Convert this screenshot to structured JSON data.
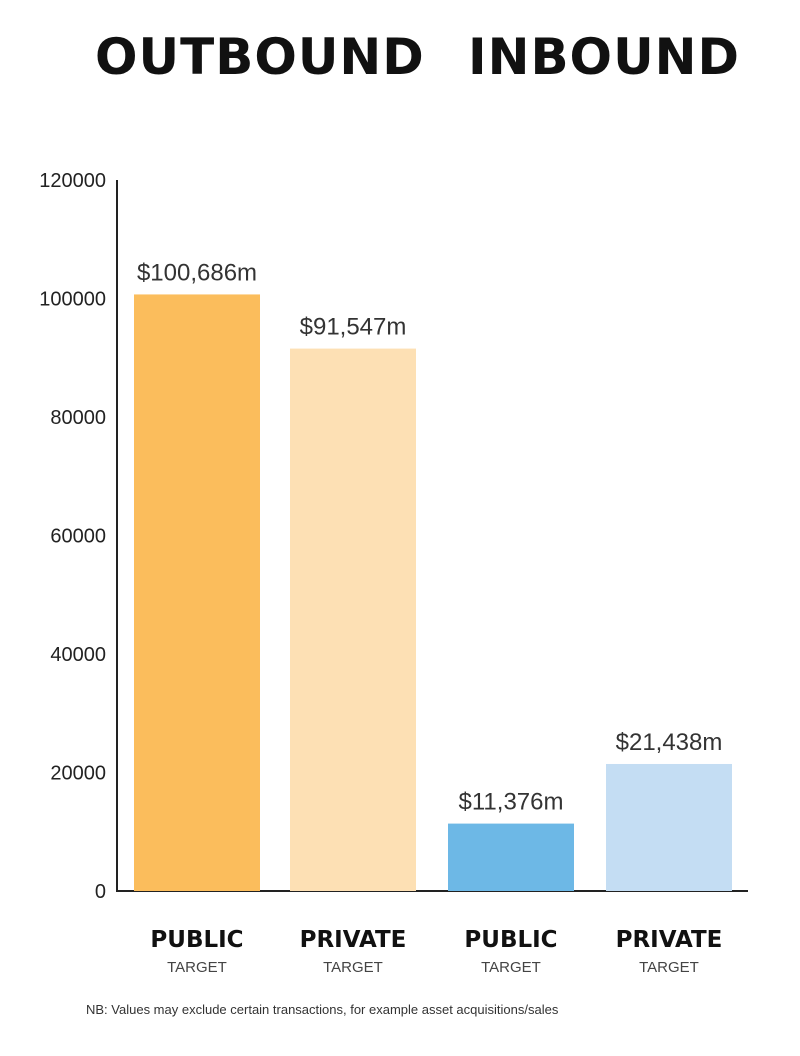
{
  "headings": {
    "outbound": "OUTBOUND",
    "inbound": "INBOUND"
  },
  "footnote": "NB: Values may exclude certain transactions, for example asset acquisitions/sales",
  "chart_data": {
    "type": "bar",
    "y_ticks": [
      0,
      20000,
      40000,
      60000,
      80000,
      100000,
      120000
    ],
    "ylim": [
      0,
      120000
    ],
    "grid": false,
    "bars": [
      {
        "group": "OUTBOUND",
        "category": "PUBLIC",
        "sub": "TARGET",
        "value": 100686,
        "label": "$100,686m",
        "color": "#fbbd5c"
      },
      {
        "group": "OUTBOUND",
        "category": "PRIVATE",
        "sub": "TARGET",
        "value": 91547,
        "label": "$91,547m",
        "color": "#fde0b4"
      },
      {
        "group": "INBOUND",
        "category": "PUBLIC",
        "sub": "TARGET",
        "value": 11376,
        "label": "$11,376m",
        "color": "#6db8e6"
      },
      {
        "group": "INBOUND",
        "category": "PRIVATE",
        "sub": "TARGET",
        "value": 21438,
        "label": "$21,438m",
        "color": "#c4ddf3"
      }
    ]
  }
}
